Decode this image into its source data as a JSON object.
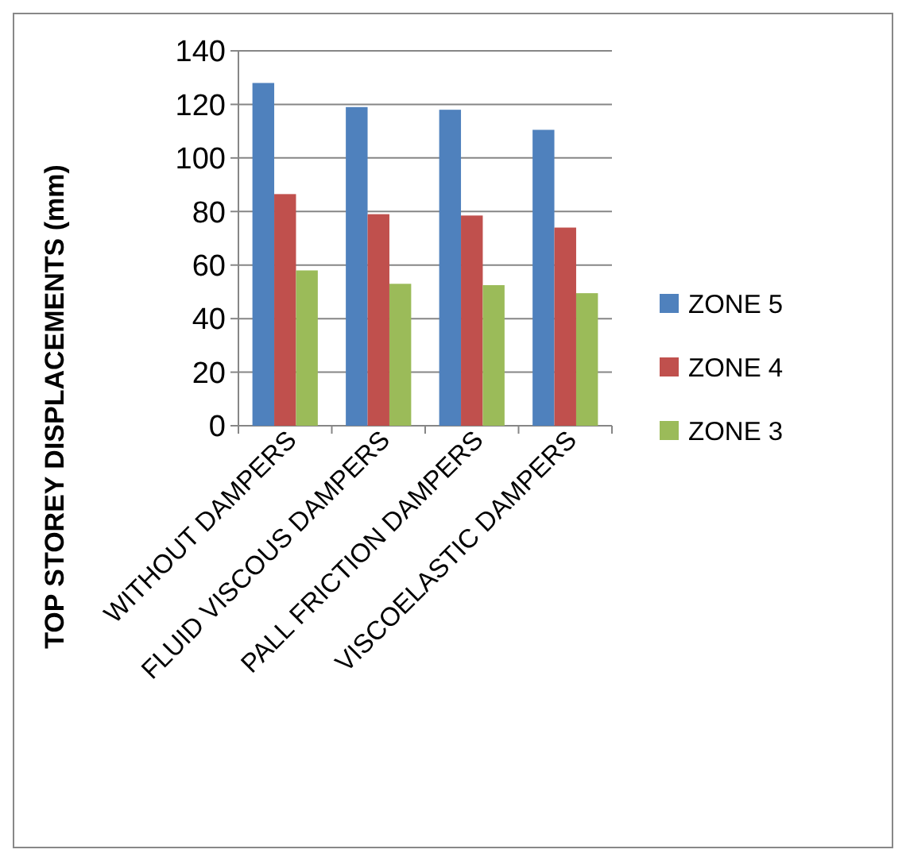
{
  "chart_data": {
    "type": "bar",
    "ylabel": "TOP STOREY DISPLACEMENTS (mm)",
    "categories": [
      "WITHOUT DAMPERS",
      "FLUID VISCOUS DAMPERS",
      "PALL FRICTION DAMPERS",
      "VISCOELASTIC DAMPERS"
    ],
    "series": [
      {
        "name": "ZONE 5",
        "color": "#4f81bd",
        "values": [
          128,
          119,
          118,
          110.5
        ]
      },
      {
        "name": "ZONE 4",
        "color": "#c0504d",
        "values": [
          86.5,
          79,
          78.5,
          74
        ]
      },
      {
        "name": "ZONE 3",
        "color": "#9bbb59",
        "values": [
          58,
          53,
          52.5,
          49.5
        ]
      }
    ],
    "ylim": [
      0,
      140
    ],
    "yticks": [
      0,
      20,
      40,
      60,
      80,
      100,
      120,
      140
    ],
    "grid": "y",
    "legend": "right"
  }
}
